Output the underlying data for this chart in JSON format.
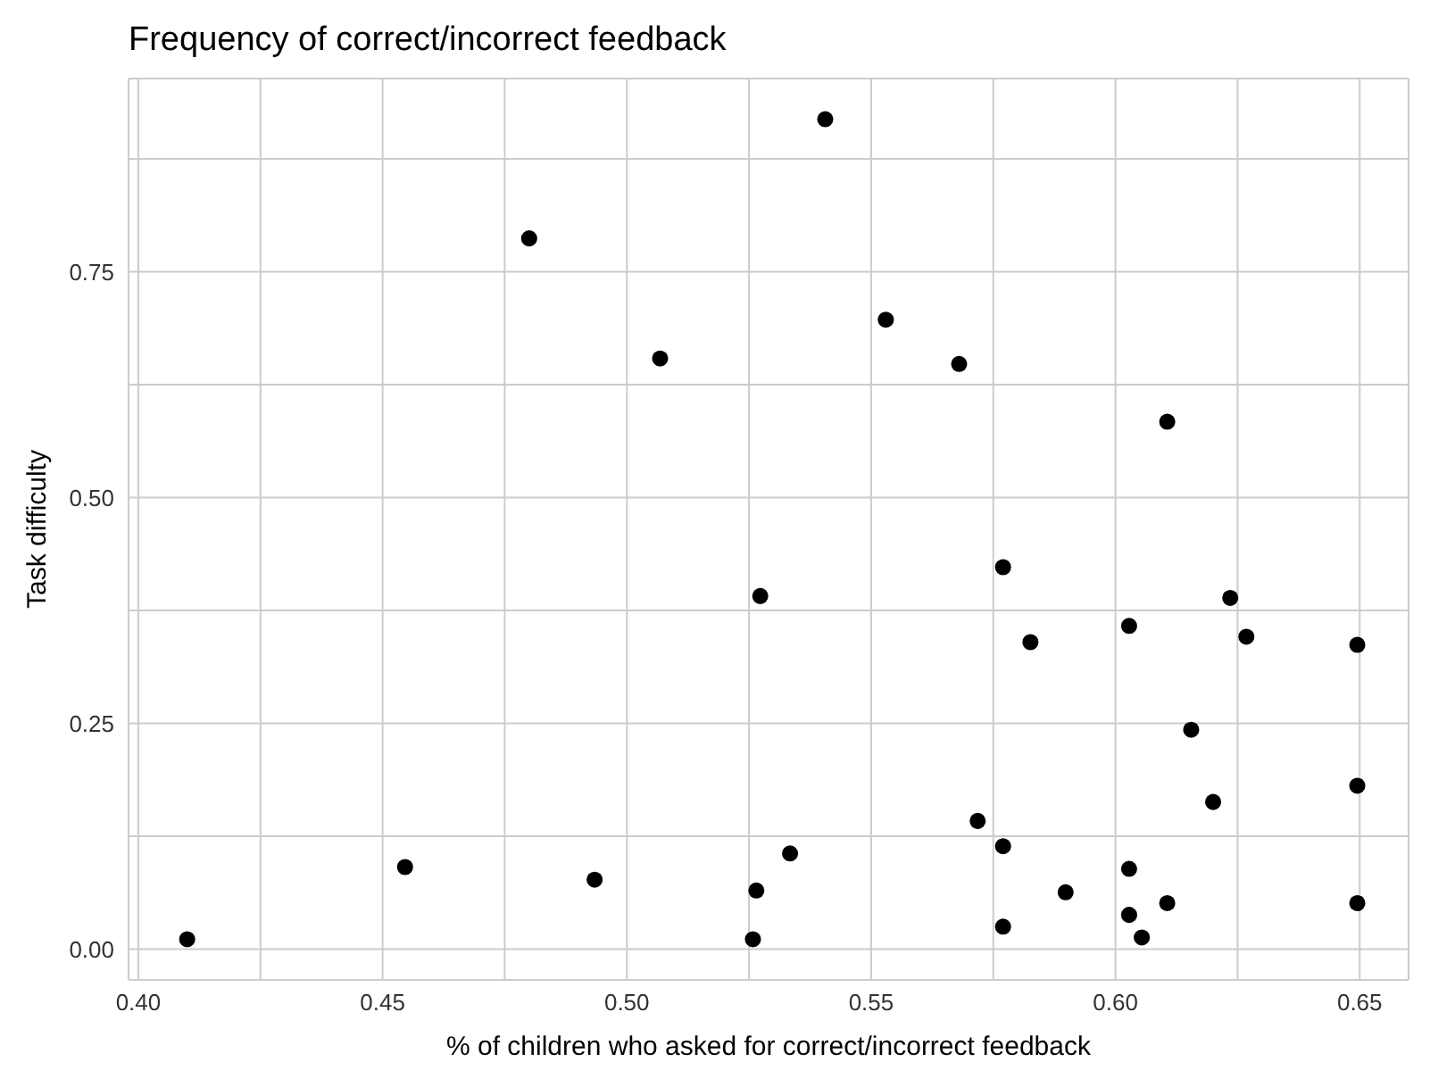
{
  "chart_data": {
    "type": "scatter",
    "title": "Frequency of correct/incorrect feedback",
    "xlabel": "% of children who asked for correct/incorrect feedback",
    "ylabel": "Task difficulty",
    "x": [
      0.41,
      0.4546,
      0.48,
      0.4934,
      0.5068,
      0.5258,
      0.5265,
      0.5273,
      0.5334,
      0.5406,
      0.553,
      0.568,
      0.5718,
      0.577,
      0.577,
      0.577,
      0.5826,
      0.5898,
      0.6028,
      0.6028,
      0.6028,
      0.6054,
      0.6106,
      0.6106,
      0.6155,
      0.62,
      0.6235,
      0.6268,
      0.6495,
      0.6495,
      0.6495
    ],
    "values": [
      0.011,
      0.091,
      0.787,
      0.077,
      0.654,
      0.011,
      0.065,
      0.391,
      0.106,
      0.919,
      0.697,
      0.648,
      0.142,
      0.423,
      0.114,
      0.025,
      0.34,
      0.063,
      0.358,
      0.089,
      0.038,
      0.013,
      0.584,
      0.051,
      0.243,
      0.163,
      0.389,
      0.346,
      0.337,
      0.181,
      0.051
    ],
    "color": "#000000",
    "marker": "circle",
    "grid": true,
    "xlim": [
      0.398,
      0.66
    ],
    "ylim": [
      -0.034,
      0.964
    ],
    "xticks": [
      {
        "value": 0.4,
        "label": "0.40"
      },
      {
        "value": 0.425,
        "label": null
      },
      0.45,
      {
        "value": 0.475,
        "label": null
      },
      {
        "value": 0.5,
        "label": "0.50"
      },
      {
        "value": 0.525,
        "label": null
      },
      0.55,
      {
        "value": 0.575,
        "label": null
      },
      {
        "value": 0.6,
        "label": "0.60"
      },
      {
        "value": 0.625,
        "label": null
      },
      0.65
    ],
    "yticks": [
      {
        "value": 0,
        "label": "0.00"
      },
      {
        "value": 0.125,
        "label": null
      },
      0.25,
      {
        "value": 0.375,
        "label": null
      },
      {
        "value": 0.5,
        "label": "0.50"
      },
      {
        "value": 0.625,
        "label": null
      },
      0.75,
      {
        "value": 0.875,
        "label": null
      }
    ]
  }
}
